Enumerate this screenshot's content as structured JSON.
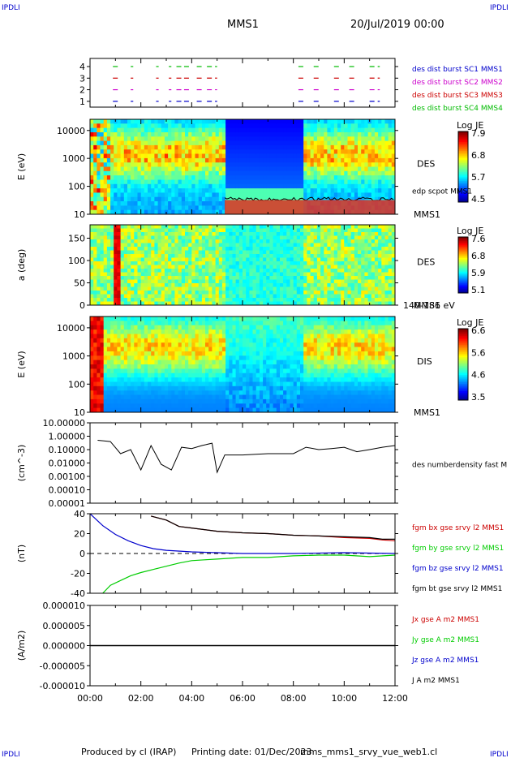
{
  "header": {
    "corner_label": "IPDLI",
    "title": "MMS1",
    "date": "20/Jul/2019 00:00"
  },
  "footer": {
    "produced": "Produced by cl (IRAP)",
    "printing": "Printing date: 01/Dec/2023",
    "file": "mms_mms1_srvy_vue_web1.cl"
  },
  "colors": {
    "dist1": "#0000cc",
    "dist2": "#cc00cc",
    "dist3": "#cc0000",
    "dist4": "#00bb00",
    "bx": "#cc0000",
    "by": "#00cc00",
    "bz": "#0000cc",
    "bt": "#000000"
  },
  "chart_data": [
    {
      "type": "scatter",
      "ylabel": "",
      "yticks": [
        "1",
        "2",
        "3",
        "4"
      ],
      "legend": [
        "des dist burst SC1 MMS1",
        "des dist burst SC2 MMS2",
        "des dist burst SC3 MMS3",
        "des dist burst SC4 MMS4"
      ],
      "segments_hours": [
        [
          0.9,
          1.1
        ],
        [
          1.6,
          1.7
        ],
        [
          2.6,
          2.7
        ],
        [
          3.1,
          3.2
        ],
        [
          3.4,
          3.6
        ],
        [
          3.7,
          4.0
        ],
        [
          4.2,
          4.4
        ],
        [
          4.6,
          5.0
        ],
        [
          8.2,
          8.5
        ],
        [
          8.8,
          9.1
        ],
        [
          9.6,
          9.8
        ],
        [
          10.2,
          10.5
        ],
        [
          11.0,
          11.4
        ]
      ]
    },
    {
      "type": "heatmap",
      "ylabel": "E (eV)",
      "yticks": [
        "10",
        "100",
        "1000",
        "10000"
      ],
      "right_label": "DES",
      "right_sub": "MMS1",
      "overlay_label": "edp scpot MMS1",
      "colorbar_title": "Log JE",
      "colorbar_ticks": [
        "7.9",
        "6.8",
        "5.7",
        "4.5"
      ]
    },
    {
      "type": "heatmap",
      "ylabel": "a (deg)",
      "yticks": [
        "0",
        "50",
        "100",
        "150"
      ],
      "right_label": "DES",
      "right_sub": "MMS1",
      "bottom_label": "140-186 eV",
      "colorbar_title": "Log JE",
      "colorbar_ticks": [
        "7.6",
        "6.8",
        "5.9",
        "5.1"
      ]
    },
    {
      "type": "heatmap",
      "ylabel": "E (eV)",
      "yticks": [
        "10",
        "100",
        "1000",
        "10000"
      ],
      "right_label": "DIS",
      "right_sub": "MMS1",
      "colorbar_title": "Log JE",
      "colorbar_ticks": [
        "6.6",
        "5.6",
        "4.6",
        "3.5"
      ]
    },
    {
      "type": "line",
      "ylabel": "(cm^-3)",
      "yticks": [
        "0.00001",
        "0.00010",
        "0.00100",
        "0.01000",
        "0.10000",
        "1.00000",
        "10.00000"
      ],
      "legend": [
        "des numberdensity fast M"
      ],
      "series": [
        {
          "name": "des numberdensity fast M",
          "x": [
            0.3,
            0.8,
            1.2,
            1.6,
            2.0,
            2.4,
            2.8,
            3.2,
            3.6,
            4.0,
            4.4,
            4.8,
            5.0,
            5.3,
            6.0,
            7.0,
            8.0,
            8.5,
            9.0,
            9.5,
            10.0,
            10.5,
            11.0,
            11.5,
            12.0
          ],
          "y": [
            0.5,
            0.4,
            0.05,
            0.1,
            0.003,
            0.2,
            0.008,
            0.003,
            0.15,
            0.12,
            0.2,
            0.3,
            0.002,
            0.04,
            0.04,
            0.05,
            0.05,
            0.15,
            0.1,
            0.12,
            0.15,
            0.07,
            0.1,
            0.15,
            0.2
          ]
        }
      ]
    },
    {
      "type": "line",
      "ylabel": "(nT)",
      "yticks": [
        "-40",
        "-20",
        "0",
        "20",
        "40"
      ],
      "ylim": [
        -50,
        50
      ],
      "legend": [
        "fgm bx gse srvy l2 MMS1",
        "fgm by gse srvy l2 MMS1",
        "fgm bz gse srvy l2 MMS1",
        "fgm bt gse srvy l2 MMS1"
      ],
      "series": [
        {
          "name": "fgm bx gse srvy l2 MMS1",
          "x": [
            2.4,
            3.0,
            3.5,
            4.0,
            5.0,
            6.0,
            7.0,
            8.0,
            9.0,
            10.0,
            11.0,
            11.5,
            12.0
          ],
          "y": [
            47,
            42,
            34,
            32,
            28,
            26,
            25,
            23,
            22,
            20,
            19,
            17,
            16
          ]
        },
        {
          "name": "fgm by gse srvy l2 MMS1",
          "x": [
            0.5,
            0.8,
            1.2,
            1.6,
            2.0,
            2.5,
            3.0,
            3.5,
            4.0,
            4.5,
            5.0,
            6.0,
            7.0,
            8.0,
            9.0,
            10.0,
            11.0,
            12.0
          ],
          "y": [
            -50,
            -40,
            -34,
            -28,
            -24,
            -20,
            -16,
            -12,
            -9,
            -8,
            -7,
            -5,
            -5,
            -3,
            -2,
            -2,
            -4,
            -2
          ]
        },
        {
          "name": "fgm bz gse srvy l2 MMS1",
          "x": [
            0,
            0.5,
            1.0,
            1.5,
            2.0,
            2.5,
            3.0,
            4.0,
            5.0,
            6.0,
            8.0,
            10.0,
            12.0
          ],
          "y": [
            50,
            35,
            24,
            16,
            10,
            6,
            4,
            2,
            1,
            0,
            0,
            1,
            0
          ]
        },
        {
          "name": "fgm bt gse srvy l2 MMS1",
          "x": [
            2.4,
            3.0,
            3.5,
            4.0,
            5.0,
            6.0,
            7.0,
            8.0,
            9.0,
            10.0,
            11.0,
            11.5,
            12.0
          ],
          "y": [
            47,
            42,
            34,
            32,
            28,
            26,
            25,
            23,
            22,
            21,
            20,
            18,
            18
          ]
        }
      ]
    },
    {
      "type": "line",
      "ylabel": "(A/m2)",
      "yticks": [
        "-0.000010",
        "-0.000005",
        "0.000000",
        "0.000005",
        "0.000010"
      ],
      "ylim": [
        -1e-05,
        1e-05
      ],
      "legend": [
        "Jx gse A m2 MMS1",
        "Jy gse A m2 MMS1",
        "Jz gse A m2 MMS1",
        "J A m2 MMS1"
      ],
      "series": [
        {
          "name": "J A m2 MMS1",
          "x": [
            0,
            12
          ],
          "y": [
            0,
            0
          ]
        }
      ]
    }
  ],
  "xaxis": {
    "ticks": [
      "00:00",
      "02:00",
      "04:00",
      "06:00",
      "08:00",
      "10:00",
      "12:00"
    ]
  }
}
